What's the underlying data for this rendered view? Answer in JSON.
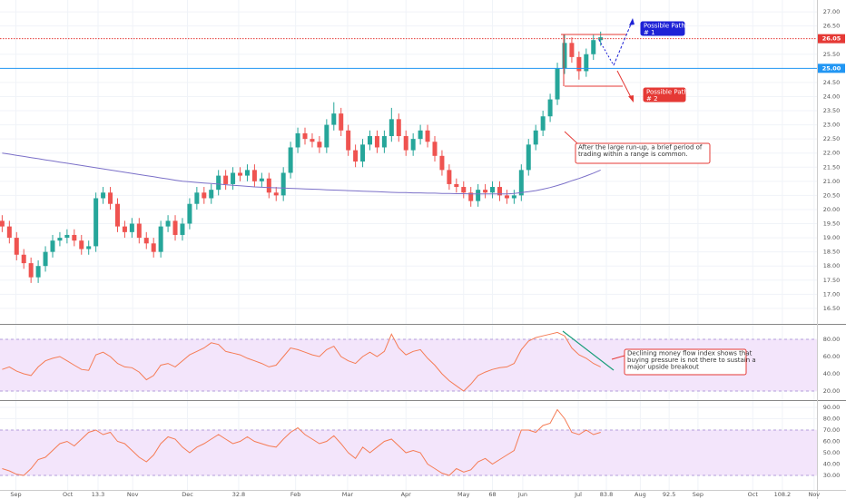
{
  "chart_data": [
    {
      "type": "candlestick",
      "xlim": [
        -0.3,
        113
      ],
      "xticks": [
        {
          "value": 1.9,
          "label": "Sep"
        },
        {
          "value": 9.1,
          "label": "Oct"
        },
        13.3,
        {
          "value": 18.1,
          "label": "Nov"
        },
        {
          "value": 25.7,
          "label": "Dec"
        },
        32.8,
        {
          "value": 40.7,
          "label": "Feb"
        },
        {
          "value": 47.9,
          "label": "Mar"
        },
        {
          "value": 56.0,
          "label": "Apr"
        },
        {
          "value": 64.0,
          "label": "May"
        },
        68.0,
        {
          "value": 72.2,
          "label": "Jun"
        },
        {
          "value": 79.9,
          "label": "Jul"
        },
        83.8,
        {
          "value": 88.5,
          "label": "Aug"
        },
        92.5,
        {
          "value": 96.5,
          "label": "Sep"
        },
        {
          "value": 104.1,
          "label": "Oct"
        },
        108.2,
        {
          "value": 112.6,
          "label": "Nov"
        }
      ],
      "ylim": [
        15.95,
        27.42
      ],
      "yticks": [
        {
          "value": 16.5,
          "label": "16.50"
        },
        {
          "value": 17,
          "label": "17.00"
        },
        {
          "value": 17.5,
          "label": "17.50"
        },
        {
          "value": 18,
          "label": "18.00"
        },
        {
          "value": 18.5,
          "label": "18.50"
        },
        {
          "value": 19,
          "label": "19.00"
        },
        {
          "value": 19.5,
          "label": "19.50"
        },
        {
          "value": 20,
          "label": "20.00"
        },
        {
          "value": 20.5,
          "label": "20.50"
        },
        {
          "value": 21,
          "label": "21.00"
        },
        {
          "value": 21.5,
          "label": "21.50"
        },
        {
          "value": 22,
          "label": "22.00"
        },
        {
          "value": 22.5,
          "label": "22.50"
        },
        {
          "value": 23,
          "label": "23.00"
        },
        {
          "value": 23.5,
          "label": "23.50"
        },
        {
          "value": 24,
          "label": "24.00"
        },
        {
          "value": 24.5,
          "label": "24.50"
        },
        {
          "value": 25.5,
          "label": "25.50"
        },
        {
          "value": 26.5,
          "label": "26.50"
        },
        {
          "value": 27,
          "label": "27.00"
        }
      ],
      "grid": true,
      "up_color": "#26a69a",
      "down_color": "#ef5350",
      "open": [
        19.6,
        19.4,
        19.0,
        18.4,
        18.1,
        17.6,
        18.0,
        18.5,
        18.9,
        19.0,
        19.1,
        18.9,
        18.6,
        18.7,
        20.4,
        20.6,
        20.2,
        19.4,
        19.2,
        19.5,
        19.0,
        18.8,
        18.5,
        19.4,
        19.6,
        19.1,
        19.5,
        20.2,
        20.6,
        20.4,
        20.7,
        21.2,
        20.9,
        21.3,
        21.2,
        21.4,
        21.0,
        21.1,
        20.6,
        20.5,
        21.3,
        22.2,
        22.7,
        22.5,
        22.4,
        22.2,
        23.0,
        23.4,
        22.8,
        22.1,
        21.7,
        22.3,
        22.6,
        22.2,
        22.6,
        23.2,
        22.6,
        22.1,
        22.5,
        22.8,
        22.4,
        21.9,
        21.4,
        20.9,
        20.8,
        20.6,
        20.3,
        20.7,
        20.6,
        20.8,
        20.5,
        20.4,
        20.5,
        21.4,
        22.3,
        22.8,
        23.3,
        23.9,
        25.0,
        25.9,
        25.4,
        24.9,
        25.5,
        26.0
      ],
      "high": [
        19.8,
        19.6,
        19.2,
        18.6,
        18.3,
        18.2,
        18.7,
        19.1,
        19.2,
        19.3,
        19.3,
        19.1,
        18.9,
        20.6,
        20.8,
        20.8,
        20.4,
        19.6,
        19.7,
        19.7,
        19.2,
        19.0,
        19.6,
        19.8,
        19.8,
        19.7,
        20.4,
        20.8,
        20.8,
        20.9,
        21.4,
        21.4,
        21.5,
        21.5,
        21.6,
        21.6,
        21.3,
        21.3,
        20.8,
        21.5,
        22.4,
        22.9,
        22.9,
        22.7,
        22.6,
        23.2,
        23.8,
        23.6,
        23.0,
        22.3,
        22.5,
        22.8,
        22.8,
        22.8,
        23.6,
        23.4,
        22.8,
        22.7,
        23.0,
        23.0,
        22.6,
        22.1,
        21.6,
        21.1,
        21.0,
        20.8,
        20.9,
        20.9,
        21.0,
        21.0,
        20.7,
        20.7,
        21.6,
        22.5,
        23.0,
        23.5,
        24.1,
        25.2,
        26.2,
        26.1,
        25.6,
        25.7,
        26.2,
        26.3
      ],
      "low": [
        19.2,
        18.8,
        18.2,
        17.9,
        17.4,
        17.4,
        17.8,
        18.3,
        18.7,
        18.8,
        18.7,
        18.4,
        18.4,
        18.5,
        20.2,
        20.0,
        19.2,
        19.0,
        19.0,
        18.8,
        18.6,
        18.3,
        18.3,
        19.2,
        18.9,
        18.9,
        19.3,
        20.0,
        20.2,
        20.2,
        20.5,
        20.7,
        20.7,
        21.0,
        21.0,
        20.8,
        20.8,
        20.4,
        20.3,
        20.3,
        21.1,
        22.0,
        22.3,
        22.2,
        22.0,
        22.0,
        22.8,
        22.6,
        21.9,
        21.5,
        21.5,
        22.1,
        22.0,
        22.0,
        22.4,
        22.4,
        21.9,
        21.9,
        22.3,
        22.2,
        21.7,
        21.2,
        20.7,
        20.6,
        20.4,
        20.1,
        20.1,
        20.4,
        20.4,
        20.3,
        20.2,
        20.2,
        20.3,
        21.2,
        22.1,
        22.6,
        23.1,
        23.7,
        24.8,
        25.2,
        24.6,
        24.7,
        25.3,
        25.8
      ],
      "close": [
        19.4,
        19.0,
        18.4,
        18.1,
        17.6,
        18.0,
        18.5,
        18.9,
        19.0,
        19.1,
        18.9,
        18.6,
        18.7,
        20.4,
        20.6,
        20.2,
        19.4,
        19.2,
        19.5,
        19.0,
        18.8,
        18.5,
        19.4,
        19.6,
        19.1,
        19.5,
        20.2,
        20.6,
        20.4,
        20.7,
        21.2,
        20.9,
        21.3,
        21.2,
        21.4,
        21.0,
        21.1,
        20.6,
        20.5,
        21.3,
        22.2,
        22.7,
        22.5,
        22.4,
        22.2,
        23.0,
        23.4,
        22.8,
        22.1,
        21.7,
        22.3,
        22.6,
        22.2,
        22.6,
        23.2,
        22.6,
        22.1,
        22.5,
        22.8,
        22.4,
        21.9,
        21.4,
        20.9,
        20.8,
        20.6,
        20.3,
        20.7,
        20.6,
        20.8,
        20.5,
        20.4,
        20.5,
        21.4,
        22.3,
        22.8,
        23.3,
        23.9,
        25.0,
        25.9,
        25.4,
        24.9,
        25.5,
        26.0,
        26.1
      ],
      "overlay": {
        "color": "#7b70c8",
        "values": [
          22.0,
          21.96,
          21.92,
          21.88,
          21.84,
          21.8,
          21.76,
          21.72,
          21.68,
          21.64,
          21.6,
          21.56,
          21.52,
          21.48,
          21.44,
          21.4,
          21.36,
          21.32,
          21.28,
          21.24,
          21.2,
          21.16,
          21.12,
          21.08,
          21.04,
          21.0,
          20.98,
          20.96,
          20.94,
          20.92,
          20.9,
          20.88,
          20.86,
          20.84,
          20.82,
          20.8,
          20.79,
          20.78,
          20.77,
          20.76,
          20.75,
          20.74,
          20.73,
          20.72,
          20.71,
          20.7,
          20.69,
          20.68,
          20.67,
          20.66,
          20.65,
          20.64,
          20.63,
          20.62,
          20.61,
          20.6,
          20.6,
          20.59,
          20.59,
          20.58,
          20.58,
          20.57,
          20.57,
          20.56,
          20.56,
          20.55,
          20.55,
          20.55,
          20.55,
          20.55,
          20.55,
          20.57,
          20.6,
          20.63,
          20.67,
          20.72,
          20.78,
          20.85,
          20.93,
          21.02,
          21.1,
          21.19,
          21.29,
          21.4
        ]
      },
      "levels": [
        {
          "value": 26.05,
          "label": "26.05",
          "color": "#e53935",
          "dash": true
        },
        {
          "value": 25,
          "label": "25.00",
          "color": "#2196f3",
          "dash": false
        }
      ],
      "notes": [
        {
          "lines": [
            "Possible Path",
            "# 1"
          ],
          "color": "#1e22d6",
          "filled": true
        },
        {
          "lines": [
            "Possible Path",
            "# 2"
          ],
          "color": "#e53935",
          "filled": true
        },
        {
          "lines": [
            "After the large run-up, a brief period of",
            "trading within a range is common."
          ],
          "color": "#e53935",
          "filled": false
        },
        {
          "lines": [
            "Declining money flow index shows that",
            "buying pressure is not there to sustain a",
            "major upside breakout"
          ],
          "color": "#e53935",
          "filled": false
        }
      ]
    },
    {
      "type": "line",
      "color": "#f57c55",
      "ylim": [
        10.5,
        96.8
      ],
      "band": [
        20,
        80
      ],
      "yticks": [
        {
          "value": 20,
          "label": "20.00"
        },
        {
          "value": 40,
          "label": "40.00"
        },
        {
          "value": 60,
          "label": "60.00"
        },
        {
          "value": 80,
          "label": "80.00"
        }
      ],
      "values": [
        45,
        48,
        43,
        40,
        38,
        48,
        55,
        58,
        60,
        55,
        50,
        45,
        44,
        62,
        65,
        60,
        52,
        48,
        47,
        42,
        33,
        38,
        50,
        52,
        48,
        55,
        62,
        66,
        70,
        76,
        74,
        66,
        64,
        62,
        58,
        55,
        52,
        48,
        50,
        60,
        70,
        68,
        65,
        62,
        60,
        68,
        72,
        60,
        55,
        52,
        60,
        65,
        60,
        66,
        86,
        70,
        62,
        66,
        68,
        58,
        50,
        40,
        32,
        26,
        20,
        28,
        38,
        42,
        45,
        47,
        48,
        52,
        68,
        78,
        82,
        84,
        86,
        88,
        84,
        70,
        62,
        58,
        52,
        48
      ]
    },
    {
      "type": "line",
      "color": "#f57c55",
      "ylim": [
        17.2,
        95.6
      ],
      "band": [
        30,
        70
      ],
      "yticks": [
        {
          "value": 30,
          "label": "30.00"
        },
        {
          "value": 40,
          "label": "40.00"
        },
        {
          "value": 50,
          "label": "50.00"
        },
        {
          "value": 60,
          "label": "60.00"
        },
        {
          "value": 70,
          "label": "70.00"
        },
        {
          "value": 80,
          "label": "80.00"
        },
        {
          "value": 90,
          "label": "90.00"
        }
      ],
      "values": [
        36,
        34,
        31,
        30,
        36,
        44,
        46,
        52,
        58,
        60,
        56,
        62,
        68,
        70,
        66,
        68,
        60,
        58,
        52,
        46,
        42,
        48,
        58,
        64,
        62,
        55,
        50,
        55,
        58,
        62,
        66,
        62,
        58,
        60,
        64,
        60,
        58,
        56,
        55,
        62,
        68,
        72,
        66,
        62,
        58,
        60,
        65,
        58,
        50,
        45,
        55,
        50,
        55,
        60,
        62,
        56,
        50,
        52,
        50,
        40,
        36,
        32,
        30,
        36,
        33,
        35,
        42,
        45,
        40,
        44,
        48,
        52,
        70,
        70,
        68,
        74,
        76,
        88,
        80,
        68,
        66,
        70,
        66,
        68
      ]
    }
  ]
}
